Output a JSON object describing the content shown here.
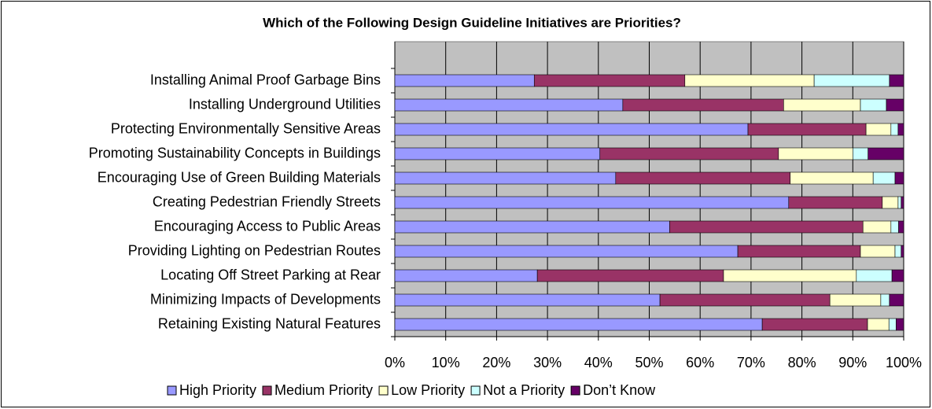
{
  "chart_data": {
    "type": "stacked-bar-horizontal",
    "title": "Which of the Following Design Guideline Initiatives are Priorities?",
    "categories": [
      "Installing Animal Proof Garbage Bins",
      "Installing Underground Utilities",
      "Protecting Environmentally Sensitive Areas",
      "Promoting Sustainability Concepts in Buildings",
      "Encouraging Use of Green Building Materials",
      "Creating Pedestrian Friendly Streets",
      "Encouraging Access to Public Areas",
      "Providing Lighting on Pedestrian Routes",
      "Locating Off Street Parking at Rear",
      "Minimizing Impacts of Developments",
      "Retaining Existing Natural Features"
    ],
    "series": [
      {
        "name": "High Priority",
        "color": "#9999ff",
        "values": [
          27.4,
          44.8,
          69.4,
          40.3,
          43.4,
          77.4,
          54,
          67.4,
          28,
          52.1,
          72.2
        ]
      },
      {
        "name": "Medium Priority",
        "color": "#993366",
        "values": [
          29.6,
          31.6,
          23.2,
          35.1,
          34.3,
          18.4,
          38,
          24.1,
          36.6,
          33.4,
          20.7
        ]
      },
      {
        "name": "Low Priority",
        "color": "#ffffcc",
        "values": [
          25.4,
          15.1,
          4.9,
          14.6,
          16.3,
          3.1,
          5.5,
          6.8,
          26.1,
          10,
          4.2
        ]
      },
      {
        "name": "Not a Priority",
        "color": "#ccffff",
        "values": [
          14.8,
          5.1,
          1.4,
          3,
          4.3,
          0.6,
          1.5,
          1.2,
          7,
          1.7,
          1.4
        ]
      },
      {
        "name": "Don’t Know",
        "color": "#660066",
        "values": [
          2.8,
          3.4,
          1.1,
          7,
          1.7,
          0.5,
          1,
          0.5,
          2.3,
          2.8,
          1.5
        ]
      }
    ],
    "xlim": [
      0,
      100
    ],
    "xticks": [
      {
        "value": 0,
        "label": "0%"
      },
      {
        "value": 10,
        "label": "10%"
      },
      {
        "value": 20,
        "label": "20%"
      },
      {
        "value": 30,
        "label": "30%"
      },
      {
        "value": 40,
        "label": "40%"
      },
      {
        "value": 50,
        "label": "50%"
      },
      {
        "value": 60,
        "label": "60%"
      },
      {
        "value": 70,
        "label": "70%"
      },
      {
        "value": 80,
        "label": "80%"
      },
      {
        "value": 90,
        "label": "90%"
      },
      {
        "value": 100,
        "label": "100%"
      }
    ],
    "grid": true,
    "legend": "bottom"
  }
}
